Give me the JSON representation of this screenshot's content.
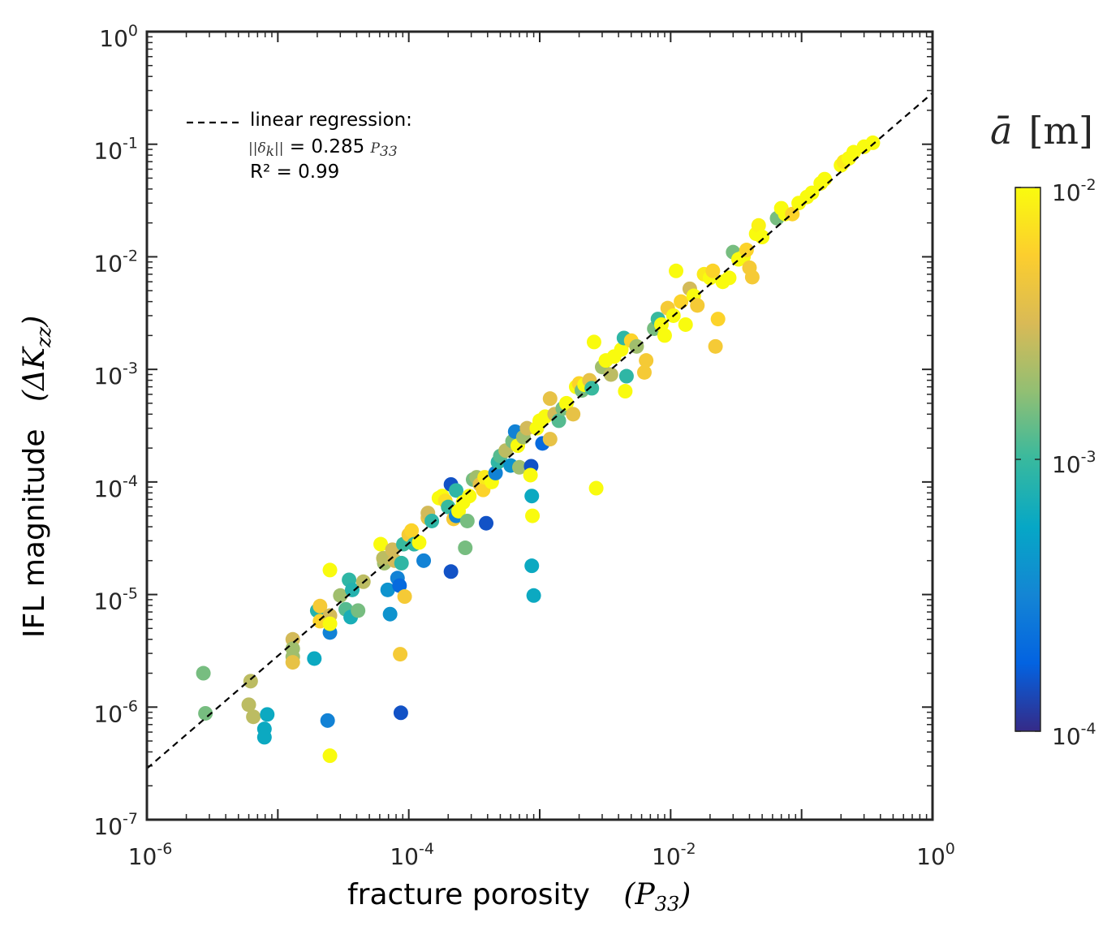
{
  "chart_data": {
    "type": "scatter",
    "xscale": "log",
    "yscale": "log",
    "xlim": [
      1e-06,
      1
    ],
    "ylim": [
      1e-07,
      1
    ],
    "x_ticks": [
      {
        "base": "10",
        "exp": "-6"
      },
      {
        "base": "10",
        "exp": "-4"
      },
      {
        "base": "10",
        "exp": "-2"
      },
      {
        "base": "10",
        "exp": "0"
      }
    ],
    "y_ticks": [
      {
        "base": "10",
        "exp": "-7"
      },
      {
        "base": "10",
        "exp": "-6"
      },
      {
        "base": "10",
        "exp": "-5"
      },
      {
        "base": "10",
        "exp": "-4"
      },
      {
        "base": "10",
        "exp": "-3"
      },
      {
        "base": "10",
        "exp": "-2"
      },
      {
        "base": "10",
        "exp": "-1"
      },
      {
        "base": "10",
        "exp": "0"
      }
    ],
    "xlabel": {
      "text": "fracture porosity",
      "math": "(P",
      "sub": "33",
      "close": ")"
    },
    "ylabel": {
      "text": "IFL magnitude",
      "math": "(ΔK",
      "sub": "zz",
      "close": ")"
    },
    "legend": {
      "line1": "linear regression:",
      "math_prefix": "||δ",
      "math_sub": "k",
      "math_suffix": "||",
      "equation": " = 0.285 ",
      "math_var": "P",
      "math_var_sub": "33",
      "r2": "R²  = 0.99"
    },
    "regression": {
      "coef": 0.285,
      "exponent": 1
    },
    "colorbar": {
      "title_var": "ā",
      "title_unit": "[m]",
      "scale": "log",
      "range": [
        0.0001,
        0.01
      ],
      "ticks": [
        {
          "base": "10",
          "exp": "-2",
          "value": 0.01
        },
        {
          "base": "10",
          "exp": "-3",
          "value": 0.001
        },
        {
          "base": "10",
          "exp": "-4",
          "value": 0.0001
        }
      ],
      "colors": [
        "#352a87",
        "#0363e1",
        "#1485d4",
        "#06a7c6",
        "#38b99e",
        "#92bf73",
        "#d9ba56",
        "#fcce2e",
        "#f9fb0e"
      ]
    },
    "points": [
      [
        2.7e-06,
        2e-06,
        0.0015
      ],
      [
        2.8e-06,
        8.8e-07,
        0.0015
      ],
      [
        6.2e-06,
        1.7e-06,
        0.0025
      ],
      [
        6e-06,
        1.05e-06,
        0.0025
      ],
      [
        6.5e-06,
        8.2e-07,
        0.0025
      ],
      [
        8.3e-06,
        8.6e-07,
        0.0006
      ],
      [
        7.9e-06,
        6.4e-07,
        0.0006
      ],
      [
        7.9e-06,
        5.4e-07,
        0.0006
      ],
      [
        1.3e-05,
        4e-06,
        0.003
      ],
      [
        1.3e-05,
        3.3e-06,
        0.002
      ],
      [
        1.3e-05,
        2.8e-06,
        0.002
      ],
      [
        1.3e-05,
        2.5e-06,
        0.004
      ],
      [
        1.9e-05,
        2.7e-06,
        0.0006
      ],
      [
        2e-05,
        7.2e-06,
        0.0008
      ],
      [
        2.1e-05,
        7.9e-06,
        0.005
      ],
      [
        2.1e-05,
        5.8e-06,
        0.006
      ],
      [
        2.5e-05,
        6.5e-06,
        0.003
      ],
      [
        2.5e-05,
        4.6e-06,
        0.0003
      ],
      [
        2.5e-05,
        1.65e-05,
        0.01
      ],
      [
        2.5e-05,
        5.5e-06,
        0.01
      ],
      [
        2.4e-05,
        7.6e-07,
        0.0003
      ],
      [
        2.5e-05,
        3.7e-07,
        0.01
      ],
      [
        3e-05,
        9.8e-06,
        0.002
      ],
      [
        3.3e-05,
        7.4e-06,
        0.0012
      ],
      [
        3.5e-05,
        1.35e-05,
        0.0009
      ],
      [
        3.7e-05,
        1.1e-05,
        0.0008
      ],
      [
        3.6e-05,
        6.3e-06,
        0.0007
      ],
      [
        4.1e-05,
        7.2e-06,
        0.0015
      ],
      [
        4.5e-05,
        1.3e-05,
        0.0025
      ],
      [
        6.5e-05,
        1.9e-05,
        0.002
      ],
      [
        6.1e-05,
        2.8e-05,
        0.01
      ],
      [
        6.4e-05,
        2.1e-05,
        0.0025
      ],
      [
        6.9e-05,
        1.1e-05,
        0.0004
      ],
      [
        7.2e-05,
        6.7e-06,
        0.0004
      ],
      [
        7.5e-05,
        2.5e-05,
        0.003
      ],
      [
        7.8e-05,
        2e-05,
        0.003
      ],
      [
        8.2e-05,
        1.4e-05,
        0.0003
      ],
      [
        8.5e-05,
        1.2e-05,
        0.0002
      ],
      [
        8.8e-05,
        1.9e-05,
        0.0009
      ],
      [
        8.6e-05,
        2.95e-06,
        0.005
      ],
      [
        8.7e-05,
        8.9e-07,
        0.00015
      ],
      [
        9.1e-05,
        2.8e-05,
        0.001
      ],
      [
        9.3e-05,
        9.6e-06,
        0.005
      ],
      [
        0.0001,
        3.4e-05,
        0.005
      ],
      [
        0.000105,
        3.7e-05,
        0.006
      ],
      [
        0.00011,
        2.8e-05,
        0.0009
      ],
      [
        0.00012,
        2.9e-05,
        0.01
      ],
      [
        0.00013,
        2e-05,
        0.0003
      ],
      [
        0.00014,
        4.8e-05,
        0.004
      ],
      [
        0.00014,
        5.3e-05,
        0.003
      ],
      [
        0.00015,
        4.5e-05,
        0.0009
      ],
      [
        0.00017,
        7.2e-05,
        0.01
      ],
      [
        0.00018,
        7.5e-05,
        0.01
      ],
      [
        0.00019,
        6.8e-05,
        0.007
      ],
      [
        0.0002,
        6e-05,
        0.001
      ],
      [
        0.00021,
        9.5e-05,
        0.00015
      ],
      [
        0.00022,
        4.7e-05,
        0.005
      ],
      [
        0.00021,
        1.6e-05,
        0.00015
      ],
      [
        0.00023,
        8.4e-05,
        0.0009
      ],
      [
        0.00023,
        5e-05,
        0.0003
      ],
      [
        0.00024,
        5.5e-05,
        0.01
      ],
      [
        0.00026,
        6.6e-05,
        0.01
      ],
      [
        0.00027,
        2.6e-05,
        0.0015
      ],
      [
        0.00028,
        4.5e-05,
        0.0015
      ],
      [
        0.00029,
        7.5e-05,
        0.01
      ],
      [
        0.00031,
        0.000105,
        0.0015
      ],
      [
        0.00033,
        0.00011,
        0.002
      ],
      [
        0.00035,
        9.5e-05,
        0.004
      ],
      [
        0.00037,
        8.5e-05,
        0.006
      ],
      [
        0.00038,
        0.00011,
        0.008
      ],
      [
        0.00039,
        4.3e-05,
        0.00015
      ],
      [
        0.00043,
        0.0001,
        0.01
      ],
      [
        0.00046,
        0.00012,
        0.0003
      ],
      [
        0.00048,
        0.00015,
        0.0009
      ],
      [
        0.0005,
        0.00017,
        0.0012
      ],
      [
        0.00055,
        0.00019,
        0.0025
      ],
      [
        0.0006,
        0.00014,
        0.0004
      ],
      [
        0.00062,
        0.00023,
        0.0015
      ],
      [
        0.00065,
        0.00028,
        0.0003
      ],
      [
        0.00068,
        0.00021,
        0.01
      ],
      [
        0.0007,
        0.000135,
        0.002
      ],
      [
        0.00075,
        0.00025,
        0.002
      ],
      [
        0.0008,
        0.0003,
        0.003
      ],
      [
        0.00086,
        0.000138,
        0.00015
      ],
      [
        0.00085,
        0.000115,
        0.01
      ],
      [
        0.00087,
        7.5e-05,
        0.0006
      ],
      [
        0.00088,
        5e-05,
        0.01
      ],
      [
        0.00087,
        1.8e-05,
        0.0006
      ],
      [
        0.0009,
        9.8e-06,
        0.0006
      ],
      [
        0.00095,
        0.0003,
        0.01
      ],
      [
        0.001,
        0.00035,
        0.01
      ],
      [
        0.00105,
        0.00022,
        0.0002
      ],
      [
        0.0011,
        0.00038,
        0.01
      ],
      [
        0.0012,
        0.00055,
        0.004
      ],
      [
        0.0013,
        0.0004,
        0.003
      ],
      [
        0.0012,
        0.00024,
        0.004
      ],
      [
        0.0014,
        0.00035,
        0.0012
      ],
      [
        0.0015,
        0.00045,
        0.0015
      ],
      [
        0.0016,
        0.0005,
        0.01
      ],
      [
        0.0018,
        0.0004,
        0.004
      ],
      [
        0.0019,
        0.0007,
        0.01
      ],
      [
        0.002,
        0.00075,
        0.006
      ],
      [
        0.0021,
        0.00065,
        0.0015
      ],
      [
        0.0022,
        0.00073,
        0.01
      ],
      [
        0.0024,
        0.0008,
        0.004
      ],
      [
        0.0026,
        0.00175,
        0.01
      ],
      [
        0.0025,
        0.00068,
        0.001
      ],
      [
        0.0027,
        8.8e-05,
        0.01
      ],
      [
        0.003,
        0.00105,
        0.002
      ],
      [
        0.0032,
        0.0012,
        0.01
      ],
      [
        0.0035,
        0.0009,
        0.0025
      ],
      [
        0.0037,
        0.0013,
        0.01
      ],
      [
        0.0042,
        0.0015,
        0.01
      ],
      [
        0.0044,
        0.0019,
        0.0009
      ],
      [
        0.0046,
        0.00087,
        0.0009
      ],
      [
        0.0045,
        0.00064,
        0.01
      ],
      [
        0.005,
        0.0018,
        0.006
      ],
      [
        0.0055,
        0.0016,
        0.002
      ],
      [
        0.0065,
        0.0012,
        0.005
      ],
      [
        0.0063,
        0.00094,
        0.005
      ],
      [
        0.0075,
        0.0023,
        0.0015
      ],
      [
        0.008,
        0.0028,
        0.001
      ],
      [
        0.0085,
        0.0025,
        0.01
      ],
      [
        0.009,
        0.002,
        0.01
      ],
      [
        0.0095,
        0.0035,
        0.005
      ],
      [
        0.0105,
        0.003,
        0.01
      ],
      [
        0.011,
        0.0075,
        0.01
      ],
      [
        0.012,
        0.004,
        0.006
      ],
      [
        0.013,
        0.0025,
        0.01
      ],
      [
        0.014,
        0.0052,
        0.003
      ],
      [
        0.015,
        0.0045,
        0.01
      ],
      [
        0.016,
        0.0037,
        0.005
      ],
      [
        0.018,
        0.007,
        0.008
      ],
      [
        0.02,
        0.0065,
        0.01
      ],
      [
        0.021,
        0.0075,
        0.006
      ],
      [
        0.022,
        0.0016,
        0.005
      ],
      [
        0.023,
        0.0028,
        0.006
      ],
      [
        0.025,
        0.006,
        0.01
      ],
      [
        0.028,
        0.0065,
        0.01
      ],
      [
        0.03,
        0.011,
        0.0015
      ],
      [
        0.033,
        0.0095,
        0.01
      ],
      [
        0.036,
        0.01,
        0.01
      ],
      [
        0.038,
        0.0115,
        0.006
      ],
      [
        0.04,
        0.008,
        0.005
      ],
      [
        0.042,
        0.0066,
        0.005
      ],
      [
        0.045,
        0.016,
        0.01
      ],
      [
        0.047,
        0.019,
        0.009
      ],
      [
        0.05,
        0.015,
        0.01
      ],
      [
        0.065,
        0.022,
        0.0015
      ],
      [
        0.07,
        0.027,
        0.01
      ],
      [
        0.075,
        0.024,
        0.01
      ],
      [
        0.085,
        0.024,
        0.006
      ],
      [
        0.095,
        0.03,
        0.01
      ],
      [
        0.11,
        0.034,
        0.01
      ],
      [
        0.12,
        0.037,
        0.01
      ],
      [
        0.14,
        0.045,
        0.01
      ],
      [
        0.15,
        0.049,
        0.01
      ],
      [
        0.2,
        0.065,
        0.01
      ],
      [
        0.21,
        0.07,
        0.008
      ],
      [
        0.23,
        0.075,
        0.01
      ],
      [
        0.25,
        0.085,
        0.01
      ],
      [
        0.3,
        0.095,
        0.01
      ],
      [
        0.35,
        0.103,
        0.01
      ]
    ]
  }
}
